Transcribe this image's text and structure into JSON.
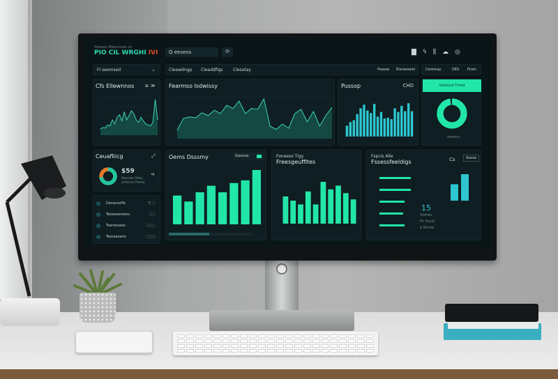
{
  "header": {
    "subtitle": "Pressos Mecorvoss ch",
    "logo": "PIO CIL WRGHI",
    "logo_accent": "IVI",
    "search_placeholder": "Q eeseos",
    "icons": [
      "file-icon",
      "bolt-icon",
      "sliders-icon",
      "user-icon",
      "settings-icon"
    ]
  },
  "filter": {
    "label": "Fl seemsed"
  },
  "tabs": [
    "Cleawdngp",
    "Cleaddfigs",
    "Clesatay"
  ],
  "tab_actions": [
    "Peasse",
    "Eleneeseel"
  ],
  "right_tabs": [
    "Ceremay",
    "DES",
    "Pram"
  ],
  "panels": {
    "a": {
      "title": "Cfs Ellewnnos",
      "controls": "≥ ≫",
      "series": [
        12,
        15,
        14,
        20,
        18,
        30,
        22,
        35,
        40,
        28,
        45,
        30,
        38,
        48,
        42,
        30,
        25,
        35,
        28,
        22,
        20,
        18,
        25,
        70,
        30
      ]
    },
    "b": {
      "title": "Fearmso Isdwissy",
      "series": [
        20,
        48,
        52,
        50,
        62,
        55,
        68,
        60,
        80,
        72,
        90,
        60,
        72,
        70,
        95,
        30,
        22,
        35,
        25,
        60,
        70,
        40,
        65,
        30,
        55,
        75
      ]
    },
    "c": {
      "title": "Pussop",
      "badge": "CHD",
      "values": [
        30,
        40,
        45,
        62,
        78,
        88,
        72,
        65,
        90,
        55,
        68,
        50,
        52,
        48,
        78,
        68,
        85,
        70,
        92,
        70
      ]
    },
    "d": {
      "button": "Vosloouf Tmed",
      "donut_percent": 98,
      "caption": "orerem"
    },
    "e": {
      "title": "Ceuafliicg",
      "value": "$59",
      "lines": [
        "Aaccas Ittey",
        "arrecos feese"
      ],
      "donut_percent": 72
    },
    "list": {
      "items": [
        "Denecsslfic",
        "Teoaseereeos",
        "Tseroosaoo",
        "Teossaeeno"
      ],
      "badges": [
        "⎘ □",
        "□□",
        "□□□",
        "□□□"
      ]
    },
    "f": {
      "title": "Oems Dsssmy",
      "control": "Ssessse",
      "values": [
        53,
        42,
        59,
        71,
        59,
        76,
        81,
        100
      ]
    },
    "g": {
      "title": "Foneeso Tigy",
      "subtitle": "Freesgeuffites",
      "values": [
        65,
        55,
        46,
        77,
        46,
        100,
        82,
        91,
        73,
        58
      ]
    },
    "h": {
      "title": "Fspcis Alle",
      "subtitle": "Fssessfeeldigs",
      "tag": "Cs",
      "button": "Aseoe",
      "hbars": [
        100,
        100,
        80,
        75,
        80
      ],
      "metric": "15",
      "metric_labels": [
        "Vistteo",
        "Pn Sossf",
        "$ Bsrow"
      ],
      "mini_values": [
        62,
        100
      ]
    }
  },
  "colors": {
    "accent": "#22e6a8",
    "cyan": "#2ec7cf",
    "bg": "#0a1518",
    "panel": "#0f1e22"
  }
}
